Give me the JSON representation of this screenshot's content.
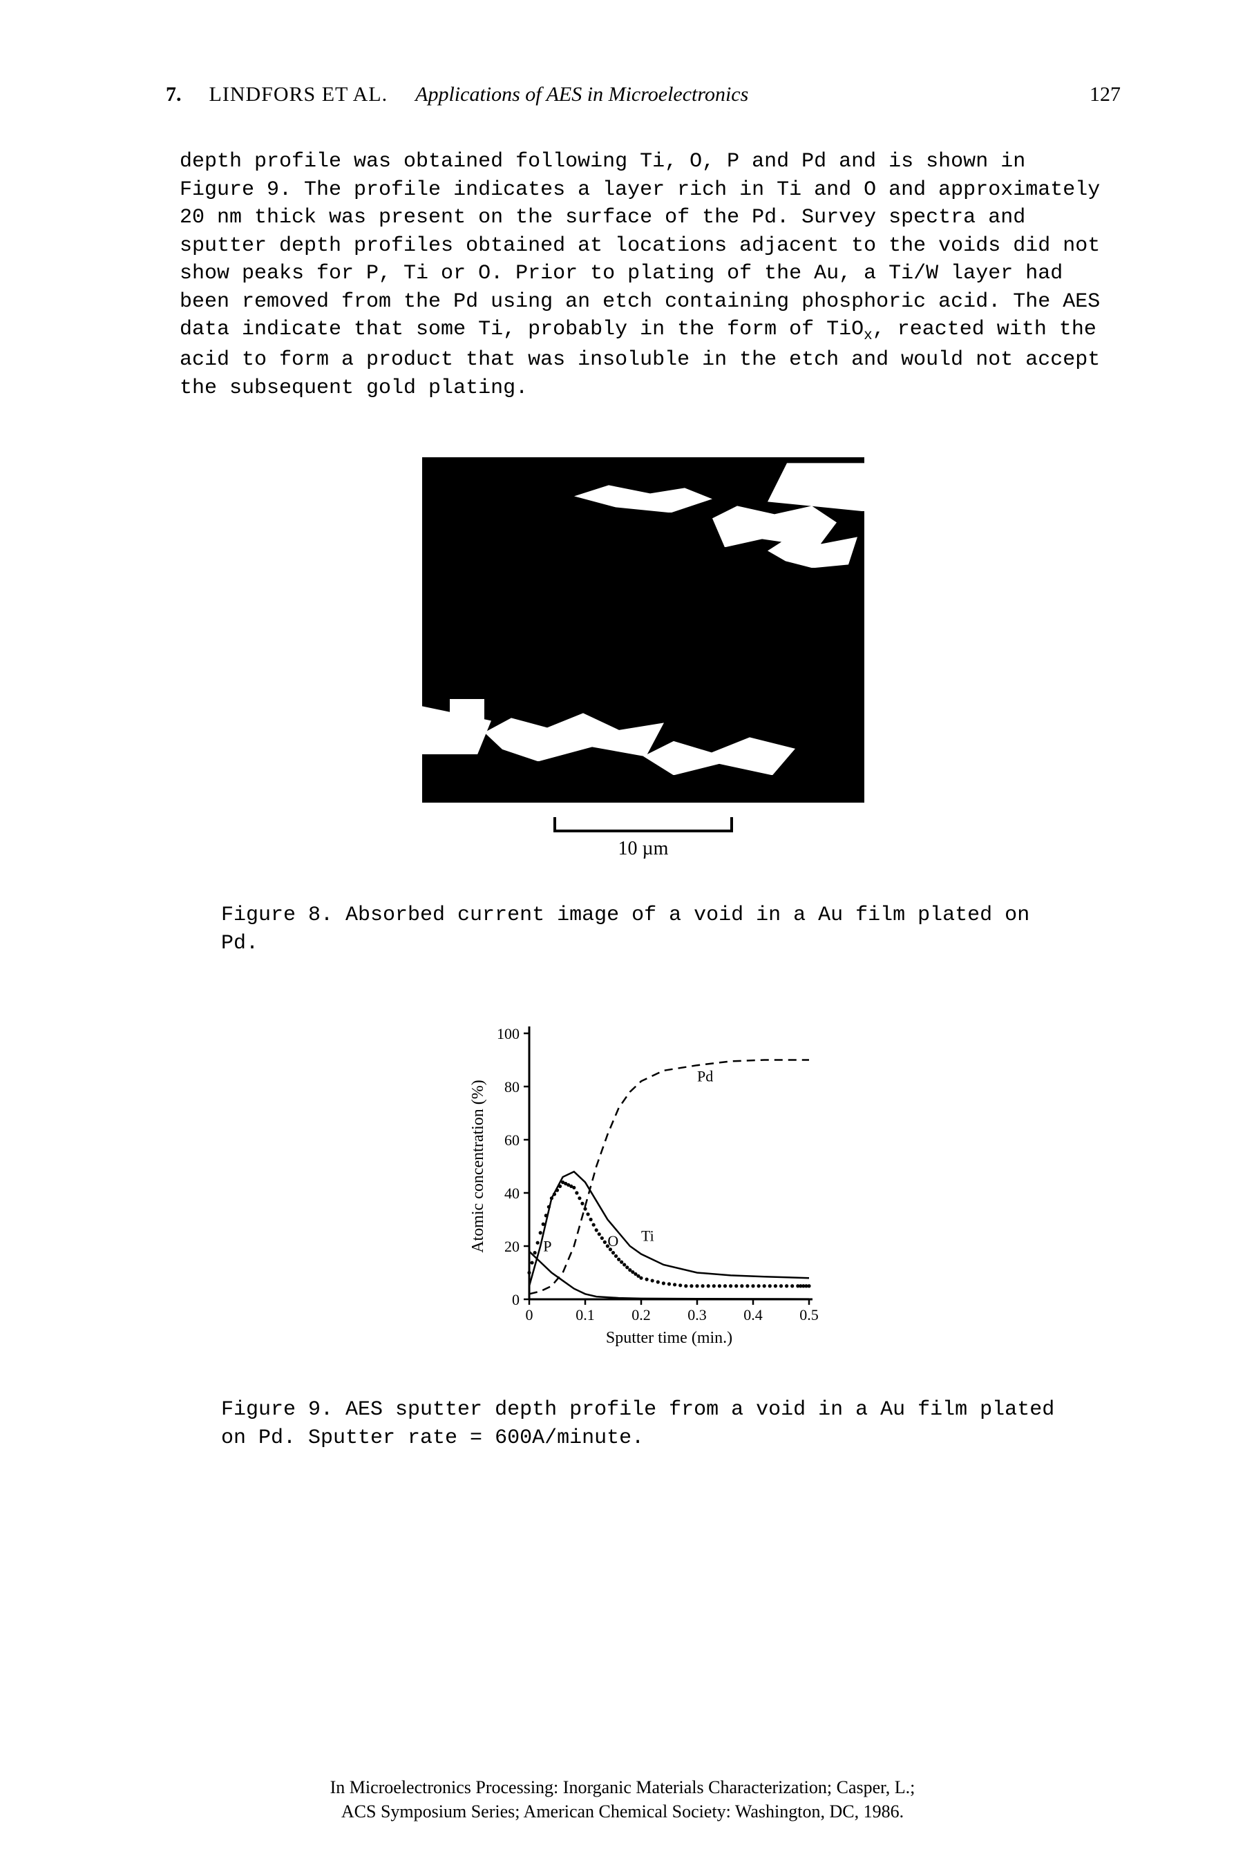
{
  "header": {
    "chapter": "7.",
    "authors": "LINDFORS ET AL.",
    "title": "Applications of AES in Microelectronics",
    "page": "127"
  },
  "body_html": "depth profile was obtained following Ti, O, P and Pd and is shown in Figure 9.  The profile indicates a layer rich in Ti and O and approximately 20 nm thick was present on the surface of the Pd.  Survey spectra and sputter depth profiles obtained at locations adjacent to the voids did not show peaks for P, Ti or O.  Prior to plating of the Au, a Ti/W layer had been removed from the Pd using an etch containing phosphoric acid.  The AES data indicate that some Ti, probably in the form of TiO<span class=\"sub\">x</span>, reacted with the acid to form a product that was insoluble in the etch and would not accept the subsequent gold plating.",
  "figure8": {
    "scale_label": "10 µm",
    "caption": "Figure 8.  Absorbed current image of a void in a Au film plated on Pd."
  },
  "figure9": {
    "type": "line",
    "caption": "Figure 9.  AES sputter depth profile from a void in a Au film plated on Pd.  Sputter rate = 600A/minute.",
    "xlabel": "Sputter time (min.)",
    "ylabel": "Atomic concentration (%)",
    "xlim": [
      0,
      0.5
    ],
    "ylim": [
      0,
      100
    ],
    "xticks": [
      0,
      0.1,
      0.2,
      0.3,
      0.4,
      0.5
    ],
    "yticks": [
      0,
      20,
      40,
      60,
      80,
      100
    ],
    "axis_color": "#000000",
    "background_color": "#ffffff",
    "label_fontsize": 24,
    "tick_fontsize": 22,
    "line_width": 2.5,
    "series": {
      "Pd": {
        "style": "dashed",
        "label_xy": [
          0.3,
          82
        ],
        "points": [
          [
            0.0,
            2
          ],
          [
            0.02,
            3
          ],
          [
            0.04,
            5
          ],
          [
            0.06,
            10
          ],
          [
            0.08,
            20
          ],
          [
            0.1,
            35
          ],
          [
            0.12,
            50
          ],
          [
            0.14,
            62
          ],
          [
            0.16,
            72
          ],
          [
            0.18,
            78
          ],
          [
            0.2,
            82
          ],
          [
            0.24,
            86
          ],
          [
            0.3,
            88
          ],
          [
            0.36,
            89.5
          ],
          [
            0.42,
            90
          ],
          [
            0.5,
            90
          ]
        ]
      },
      "Ti": {
        "style": "solid",
        "label_xy": [
          0.2,
          22
        ],
        "points": [
          [
            0.0,
            5
          ],
          [
            0.02,
            20
          ],
          [
            0.04,
            38
          ],
          [
            0.06,
            46
          ],
          [
            0.08,
            48
          ],
          [
            0.1,
            44
          ],
          [
            0.12,
            37
          ],
          [
            0.14,
            30
          ],
          [
            0.16,
            25
          ],
          [
            0.18,
            20
          ],
          [
            0.2,
            17
          ],
          [
            0.24,
            13
          ],
          [
            0.3,
            10
          ],
          [
            0.36,
            9
          ],
          [
            0.42,
            8.5
          ],
          [
            0.5,
            8
          ]
        ]
      },
      "O": {
        "style": "dotted",
        "label_xy": [
          0.14,
          20
        ],
        "points": [
          [
            0.0,
            10
          ],
          [
            0.02,
            25
          ],
          [
            0.04,
            38
          ],
          [
            0.06,
            44
          ],
          [
            0.08,
            42
          ],
          [
            0.1,
            34
          ],
          [
            0.12,
            26
          ],
          [
            0.14,
            20
          ],
          [
            0.16,
            15
          ],
          [
            0.18,
            11
          ],
          [
            0.2,
            8
          ],
          [
            0.24,
            6
          ],
          [
            0.28,
            5
          ],
          [
            0.32,
            5
          ],
          [
            0.36,
            5
          ],
          [
            0.4,
            5
          ],
          [
            0.44,
            5
          ],
          [
            0.48,
            5
          ],
          [
            0.5,
            5
          ]
        ]
      },
      "P": {
        "style": "solid",
        "label_xy": [
          0.025,
          18
        ],
        "points": [
          [
            0.0,
            18
          ],
          [
            0.02,
            14
          ],
          [
            0.04,
            10
          ],
          [
            0.06,
            7
          ],
          [
            0.08,
            4
          ],
          [
            0.1,
            2
          ],
          [
            0.12,
            1
          ],
          [
            0.16,
            0.5
          ],
          [
            0.2,
            0.3
          ],
          [
            0.3,
            0.2
          ],
          [
            0.5,
            0.1
          ]
        ]
      }
    }
  },
  "citation": {
    "line1": "In Microelectronics Processing: Inorganic Materials Characterization; Casper, L.;",
    "line2": "ACS Symposium Series; American Chemical Society: Washington, DC, 1986."
  }
}
